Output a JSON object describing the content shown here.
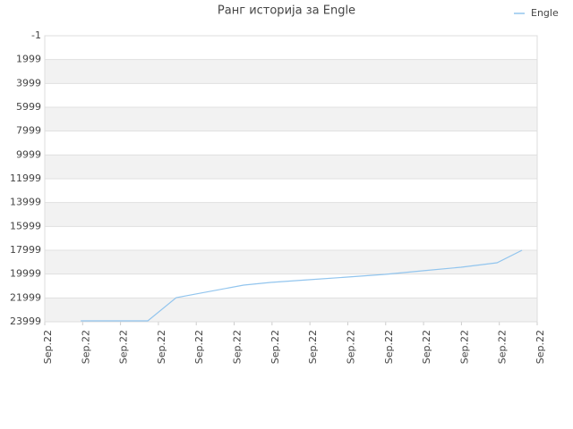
{
  "chart_data": {
    "type": "line",
    "title": "Ранг историја за Engle",
    "x": [
      0.95,
      2.72,
      3.47,
      5.25,
      5.96,
      6.97,
      7.99,
      8.98,
      9.97,
      10.99,
      11.94,
      12.6
    ],
    "series": [
      {
        "name": "Engle",
        "color": "#92c5ee",
        "values": [
          23924,
          23924,
          21974,
          20924,
          20699,
          20474,
          20249,
          20024,
          19724,
          19424,
          19049,
          17999
        ]
      }
    ],
    "xlim": [
      0,
      13
    ],
    "xticks": [
      {
        "value": 0,
        "label": "Sep.22"
      },
      {
        "value": 1,
        "label": "Sep.22"
      },
      {
        "value": 2,
        "label": "Sep.22"
      },
      {
        "value": 3,
        "label": "Sep.22"
      },
      {
        "value": 4,
        "label": "Sep.22"
      },
      {
        "value": 5,
        "label": "Sep.22"
      },
      {
        "value": 6,
        "label": "Sep.22"
      },
      {
        "value": 7,
        "label": "Sep.22"
      },
      {
        "value": 8,
        "label": "Sep.22"
      },
      {
        "value": 9,
        "label": "Sep.22"
      },
      {
        "value": 10,
        "label": "Sep.22"
      },
      {
        "value": 11,
        "label": "Sep.22"
      },
      {
        "value": 12,
        "label": "Sep.22"
      },
      {
        "value": 13,
        "label": "Sep.22"
      }
    ],
    "ylim": [
      23999,
      -1
    ],
    "yticks": [
      -1,
      1999,
      3999,
      5999,
      7999,
      9999,
      11999,
      13999,
      15999,
      17999,
      19999,
      21999,
      23999
    ],
    "grid": true,
    "legend": "top-right"
  }
}
